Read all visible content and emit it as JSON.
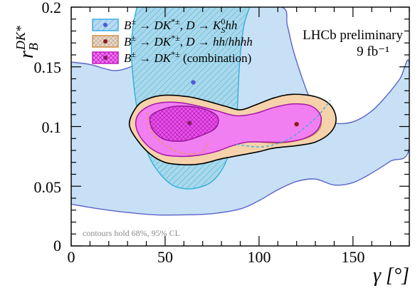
{
  "chart_data": {
    "type": "contour",
    "xlabel": "γ [°]",
    "ylabel": "r_B^{DK*}",
    "xlim": [
      0,
      180
    ],
    "ylim": [
      0,
      0.2
    ],
    "xticks": [
      "0",
      "50",
      "100",
      "150"
    ],
    "yticks": [
      "0",
      "0.05",
      "0.1",
      "0.15",
      "0.2"
    ],
    "legend": [
      {
        "label": "B± → DK*±, D → K_S^0hh",
        "color": "#3aaee0",
        "fill": "#bcd9f2",
        "hatch": "///"
      },
      {
        "label": "B± → DK*±, D → hh/hhhh",
        "color": "#d9892a",
        "fill": "#f7d8b8",
        "hatch": "xxx"
      },
      {
        "label": "B± → DK*± (combination)",
        "color": "#c21bc4",
        "fill": "#ef7cf0",
        "hatch": "xxx"
      }
    ],
    "annotation": "LHCb preliminary",
    "luminosity": "9 fb⁻¹",
    "note": "contours hold 68%, 95% CL",
    "series": [
      {
        "name": "B± → DK*±, D → K_S^0hh",
        "best_fit": [
          65,
          0.137
        ]
      },
      {
        "name": "B± → DK*±, D → hh/hhhh",
        "best_fit": [
          120,
          0.102
        ]
      },
      {
        "name": "B± → DK*± (combination)",
        "best_fit": [
          63,
          0.103
        ]
      }
    ],
    "contours": {
      "ks_95": [
        [
          0,
          0.154
        ],
        [
          10,
          0.152
        ],
        [
          22,
          0.147
        ],
        [
          30,
          0.149
        ],
        [
          40,
          0.156
        ],
        [
          50,
          0.163
        ],
        [
          60,
          0.172
        ],
        [
          70,
          0.182
        ],
        [
          80,
          0.192
        ],
        [
          88,
          0.2
        ],
        [
          112,
          0.2
        ],
        [
          115,
          0.185
        ],
        [
          118,
          0.165
        ],
        [
          122,
          0.145
        ],
        [
          127,
          0.124
        ],
        [
          133,
          0.11
        ],
        [
          140,
          0.103
        ],
        [
          150,
          0.104
        ],
        [
          160,
          0.113
        ],
        [
          168,
          0.126
        ],
        [
          175,
          0.14
        ],
        [
          180,
          0.153
        ],
        [
          180,
          0.082
        ],
        [
          170,
          0.071
        ],
        [
          160,
          0.061
        ],
        [
          150,
          0.053
        ],
        [
          140,
          0.051
        ],
        [
          130,
          0.056
        ],
        [
          120,
          0.054
        ],
        [
          110,
          0.047
        ],
        [
          100,
          0.038
        ],
        [
          90,
          0.031
        ],
        [
          75,
          0.027
        ],
        [
          60,
          0.026
        ],
        [
          45,
          0.026
        ],
        [
          30,
          0.028
        ],
        [
          15,
          0.031
        ],
        [
          0,
          0.035
        ]
      ],
      "ks_68": [
        [
          35,
          0.2
        ],
        [
          33,
          0.185
        ],
        [
          32,
          0.165
        ],
        [
          33,
          0.14
        ],
        [
          35,
          0.115
        ],
        [
          38,
          0.092
        ],
        [
          43,
          0.07
        ],
        [
          52,
          0.053
        ],
        [
          60,
          0.048
        ],
        [
          68,
          0.049
        ],
        [
          75,
          0.054
        ],
        [
          81,
          0.066
        ],
        [
          85,
          0.083
        ],
        [
          88,
          0.105
        ],
        [
          89,
          0.135
        ],
        [
          90,
          0.16
        ],
        [
          92,
          0.185
        ],
        [
          95,
          0.2
        ]
      ],
      "ks_68_dashed": [
        [
          88,
          0.085
        ],
        [
          102,
          0.083
        ],
        [
          115,
          0.089
        ],
        [
          125,
          0.1
        ],
        [
          132,
          0.11
        ],
        [
          136,
          0.118
        ],
        [
          138,
          0.122
        ]
      ],
      "hh_95": [
        [
          33,
          0.112
        ],
        [
          38,
          0.121
        ],
        [
          48,
          0.126
        ],
        [
          62,
          0.125
        ],
        [
          73,
          0.121
        ],
        [
          82,
          0.117
        ],
        [
          90,
          0.114
        ],
        [
          98,
          0.118
        ],
        [
          108,
          0.124
        ],
        [
          118,
          0.127
        ],
        [
          130,
          0.125
        ],
        [
          138,
          0.118
        ],
        [
          141,
          0.106
        ],
        [
          138,
          0.095
        ],
        [
          130,
          0.087
        ],
        [
          120,
          0.084
        ],
        [
          108,
          0.082
        ],
        [
          100,
          0.079
        ],
        [
          90,
          0.076
        ],
        [
          80,
          0.073
        ],
        [
          70,
          0.069
        ],
        [
          60,
          0.068
        ],
        [
          50,
          0.07
        ],
        [
          42,
          0.077
        ],
        [
          35,
          0.089
        ],
        [
          31,
          0.101
        ]
      ],
      "hh_68": [
        [
          70,
          0.096
        ],
        [
          80,
          0.102
        ],
        [
          92,
          0.108
        ],
        [
          103,
          0.112
        ],
        [
          114,
          0.115
        ],
        [
          124,
          0.114
        ],
        [
          131,
          0.109
        ],
        [
          133,
          0.101
        ],
        [
          129,
          0.093
        ],
        [
          120,
          0.088
        ],
        [
          110,
          0.086
        ],
        [
          100,
          0.087
        ],
        [
          88,
          0.089
        ],
        [
          78,
          0.091
        ]
      ],
      "hh_68_dashed": [
        [
          40,
          0.112
        ],
        [
          42,
          0.098
        ],
        [
          47,
          0.088
        ],
        [
          55,
          0.08
        ],
        [
          63,
          0.077
        ],
        [
          70,
          0.079
        ],
        [
          73,
          0.087
        ]
      ],
      "comb_95": [
        [
          35,
          0.108
        ],
        [
          40,
          0.116
        ],
        [
          48,
          0.12
        ],
        [
          58,
          0.12
        ],
        [
          68,
          0.117
        ],
        [
          78,
          0.113
        ],
        [
          88,
          0.109
        ],
        [
          98,
          0.111
        ],
        [
          108,
          0.116
        ],
        [
          118,
          0.119
        ],
        [
          128,
          0.117
        ],
        [
          133,
          0.108
        ],
        [
          131,
          0.097
        ],
        [
          124,
          0.09
        ],
        [
          114,
          0.087
        ],
        [
          104,
          0.087
        ],
        [
          94,
          0.087
        ],
        [
          86,
          0.084
        ],
        [
          77,
          0.079
        ],
        [
          68,
          0.076
        ],
        [
          58,
          0.075
        ],
        [
          48,
          0.077
        ],
        [
          40,
          0.085
        ],
        [
          35,
          0.097
        ]
      ],
      "comb_68": [
        [
          43,
          0.11
        ],
        [
          52,
          0.116
        ],
        [
          62,
          0.117
        ],
        [
          72,
          0.114
        ],
        [
          78,
          0.108
        ],
        [
          77,
          0.099
        ],
        [
          70,
          0.093
        ],
        [
          60,
          0.088
        ],
        [
          50,
          0.089
        ],
        [
          44,
          0.096
        ],
        [
          42,
          0.104
        ]
      ]
    }
  }
}
